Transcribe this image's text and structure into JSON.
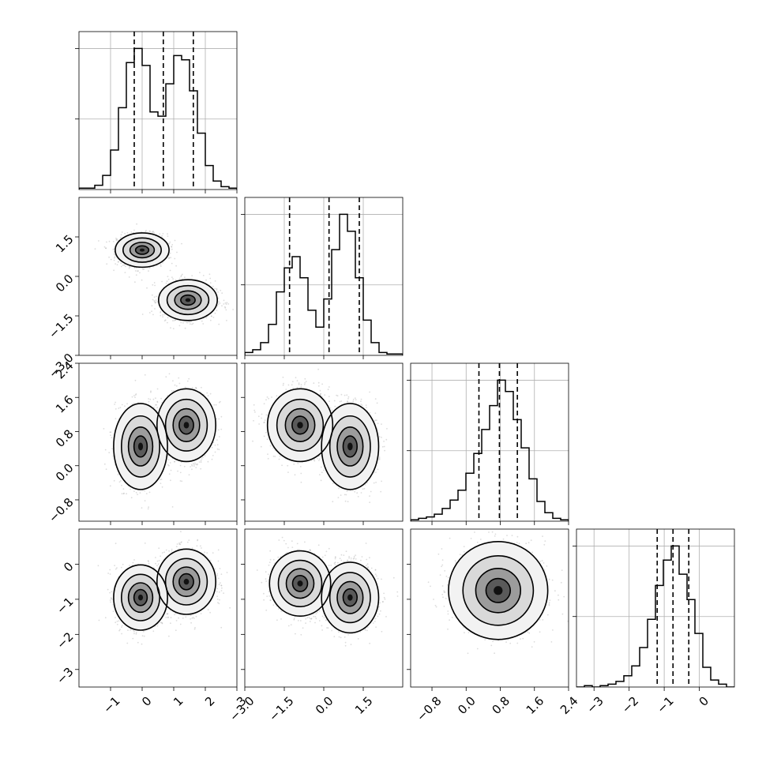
{
  "chart_data": {
    "type": "corner",
    "grid": true,
    "params": [
      {
        "range": [
          -2.0,
          3.0
        ],
        "ticks": [
          -1,
          0,
          1,
          2,
          3
        ],
        "tick_labels": [
          "−1",
          "0",
          "1",
          "2",
          "3"
        ],
        "modes": [
          {
            "mu": 0.0,
            "sd": 0.42,
            "w": 0.5
          },
          {
            "mu": 1.45,
            "sd": 0.42,
            "w": 0.5
          }
        ],
        "quantiles": [
          -0.25,
          0.67,
          1.62
        ]
      },
      {
        "range": [
          -3.0,
          3.0
        ],
        "ticks": [
          -3.0,
          -1.5,
          0.0,
          1.5
        ],
        "tick_labels": [
          "−3.0",
          "−1.5",
          "0.0",
          "1.5"
        ],
        "modes": [
          {
            "mu": -0.9,
            "sd": 0.55,
            "w": 0.5
          },
          {
            "mu": 1.0,
            "sd": 0.55,
            "w": 0.5
          }
        ],
        "quantiles": [
          -1.3,
          0.2,
          1.35
        ]
      },
      {
        "range": [
          -1.3,
          2.4
        ],
        "ticks": [
          -0.8,
          0.0,
          0.8,
          1.6,
          2.4
        ],
        "tick_labels": [
          "−0.8",
          "0.0",
          "0.8",
          "1.6",
          "2.4"
        ],
        "modes": [
          {
            "mu": 0.75,
            "sd": 0.4,
            "w": 1.0
          }
        ],
        "quantiles": [
          0.3,
          0.78,
          1.2
        ]
      },
      {
        "range": [
          -3.5,
          1.0
        ],
        "ticks": [
          -3,
          -2,
          -1,
          0
        ],
        "tick_labels": [
          "−3",
          "−2",
          "−1",
          "0"
        ],
        "modes": [
          {
            "mu": -0.75,
            "sd": 0.45,
            "w": 1.0
          }
        ],
        "quantiles": [
          -1.2,
          -0.75,
          -0.3
        ]
      }
    ],
    "histogram_counts": [
      [
        1,
        1,
        3,
        10,
        28,
        58,
        90,
        100,
        88,
        55,
        52,
        75,
        95,
        92,
        70,
        40,
        17,
        6,
        2,
        1
      ],
      [
        2,
        4,
        9,
        22,
        45,
        62,
        70,
        55,
        32,
        20,
        40,
        75,
        100,
        88,
        55,
        25,
        9,
        2,
        1,
        1
      ],
      [
        1,
        2,
        3,
        5,
        9,
        15,
        22,
        34,
        48,
        65,
        82,
        100,
        92,
        72,
        52,
        30,
        14,
        6,
        2,
        1
      ],
      [
        0,
        1,
        0,
        1,
        2,
        4,
        8,
        15,
        28,
        48,
        72,
        90,
        100,
        80,
        62,
        38,
        14,
        5,
        2,
        0
      ]
    ],
    "pair_modes": [
      {
        "row": 1,
        "col": 0,
        "centers": [
          [
            0.0,
            1.0
          ],
          [
            1.45,
            -0.9
          ]
        ],
        "contour_radii": [
          [
            0.55,
            0.42
          ],
          [
            0.6,
            0.5
          ]
        ]
      },
      {
        "row": 2,
        "col": 0,
        "centers": [
          [
            -0.05,
            0.45
          ],
          [
            1.4,
            0.95
          ]
        ],
        "contour_radii": [
          [
            0.55,
            0.65
          ],
          [
            0.6,
            0.55
          ]
        ]
      },
      {
        "row": 2,
        "col": 1,
        "centers": [
          [
            -0.9,
            0.95
          ],
          [
            1.0,
            0.45
          ]
        ],
        "contour_radii": [
          [
            0.8,
            0.55
          ],
          [
            0.7,
            0.65
          ]
        ]
      },
      {
        "row": 3,
        "col": 0,
        "centers": [
          [
            -0.05,
            -0.95
          ],
          [
            1.4,
            -0.5
          ]
        ],
        "contour_radii": [
          [
            0.55,
            0.6
          ],
          [
            0.6,
            0.6
          ]
        ]
      },
      {
        "row": 3,
        "col": 1,
        "centers": [
          [
            -0.9,
            -0.55
          ],
          [
            1.0,
            -0.95
          ]
        ],
        "contour_radii": [
          [
            0.75,
            0.6
          ],
          [
            0.7,
            0.65
          ]
        ]
      },
      {
        "row": 3,
        "col": 2,
        "centers": [
          [
            0.75,
            -0.75
          ]
        ],
        "contour_radii": [
          [
            0.75,
            0.9
          ]
        ]
      }
    ]
  }
}
